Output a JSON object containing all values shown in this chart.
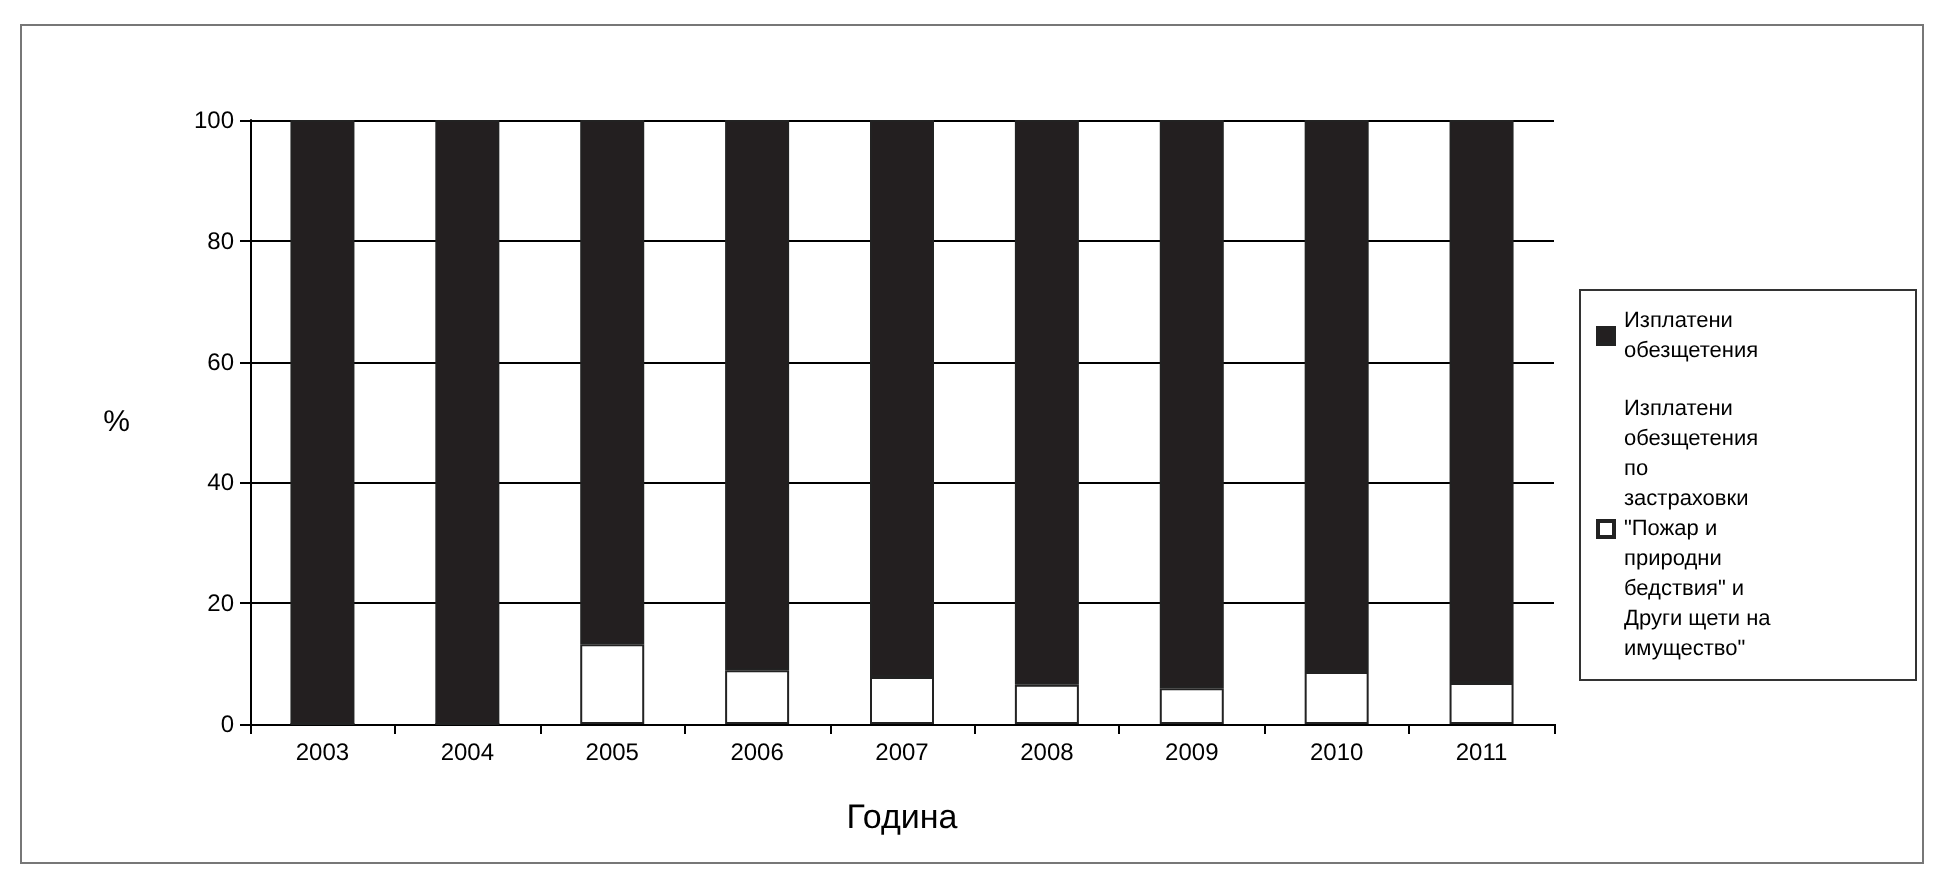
{
  "chart_data": {
    "type": "bar",
    "stacked": true,
    "xlabel": "Година",
    "ylabel": "%",
    "categories": [
      "2003",
      "2004",
      "2005",
      "2006",
      "2007",
      "2008",
      "2009",
      "2010",
      "2011"
    ],
    "series": [
      {
        "name": "Изплатени обезщетения по застраховки \"Пожар и природни бедствия\" и Други щети на имущество\"",
        "color": "#ffffff",
        "values": [
          0,
          0,
          13.2,
          8.9,
          7.8,
          6.5,
          5.9,
          8.6,
          6.8
        ]
      },
      {
        "name": "Изплатени обезщетения",
        "color": "#231f20",
        "values": [
          100,
          100,
          86.8,
          91.1,
          92.2,
          93.5,
          94.1,
          91.4,
          93.2
        ]
      }
    ],
    "ylim": [
      0,
      100
    ],
    "yticks": [
      0,
      20,
      40,
      60,
      80,
      100
    ],
    "grid": "y",
    "legend": "right"
  }
}
